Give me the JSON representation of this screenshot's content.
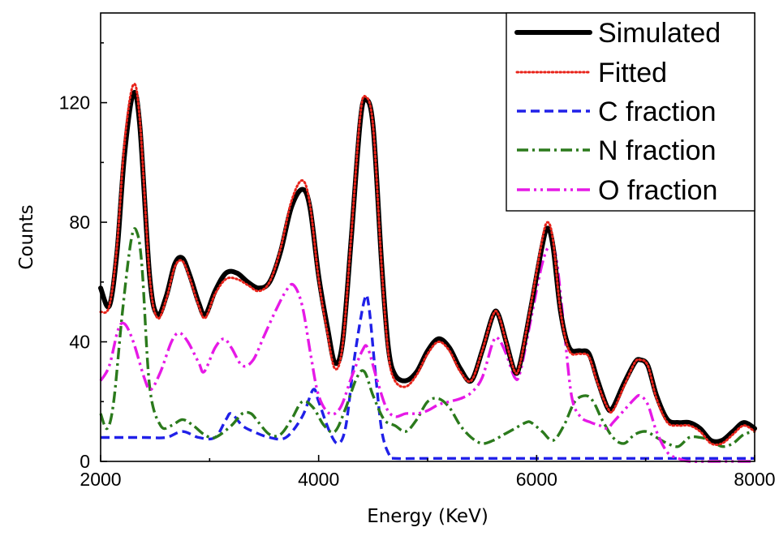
{
  "chart_data": {
    "type": "line",
    "xlabel": "Energy (KeV)",
    "ylabel": "Counts",
    "xlim": [
      2000,
      8000
    ],
    "ylim": [
      0,
      150
    ],
    "xticks": [
      2000,
      4000,
      6000,
      8000
    ],
    "yticks": [
      0,
      40,
      80,
      120
    ],
    "x_tick_labels": [
      "2000",
      "4000",
      "6000",
      "8000"
    ],
    "y_tick_labels": [
      "0",
      "40",
      "80",
      "120"
    ],
    "grid": false,
    "legend_position": "top-right",
    "series": [
      {
        "name": "Simulated",
        "color": "#000000",
        "style": "solid-thick",
        "points": [
          [
            2000,
            58
          ],
          [
            2080,
            52
          ],
          [
            2150,
            70
          ],
          [
            2220,
            103
          ],
          [
            2300,
            123
          ],
          [
            2360,
            112
          ],
          [
            2450,
            62
          ],
          [
            2520,
            49
          ],
          [
            2600,
            55
          ],
          [
            2680,
            66
          ],
          [
            2750,
            68
          ],
          [
            2820,
            62
          ],
          [
            2900,
            53
          ],
          [
            2960,
            49
          ],
          [
            3050,
            57
          ],
          [
            3150,
            63
          ],
          [
            3250,
            63
          ],
          [
            3350,
            60
          ],
          [
            3450,
            58
          ],
          [
            3550,
            60
          ],
          [
            3650,
            70
          ],
          [
            3750,
            85
          ],
          [
            3850,
            91
          ],
          [
            3920,
            85
          ],
          [
            4000,
            62
          ],
          [
            4080,
            45
          ],
          [
            4150,
            33
          ],
          [
            4220,
            40
          ],
          [
            4300,
            75
          ],
          [
            4380,
            113
          ],
          [
            4430,
            121
          ],
          [
            4500,
            112
          ],
          [
            4580,
            65
          ],
          [
            4640,
            38
          ],
          [
            4700,
            29
          ],
          [
            4800,
            27
          ],
          [
            4900,
            30
          ],
          [
            5000,
            37
          ],
          [
            5100,
            41
          ],
          [
            5200,
            38
          ],
          [
            5300,
            31
          ],
          [
            5400,
            27
          ],
          [
            5500,
            37
          ],
          [
            5600,
            49
          ],
          [
            5650,
            49
          ],
          [
            5720,
            40
          ],
          [
            5800,
            30
          ],
          [
            5850,
            33
          ],
          [
            5950,
            52
          ],
          [
            6050,
            72
          ],
          [
            6100,
            78
          ],
          [
            6150,
            72
          ],
          [
            6220,
            50
          ],
          [
            6300,
            38
          ],
          [
            6400,
            37
          ],
          [
            6480,
            36
          ],
          [
            6560,
            27
          ],
          [
            6650,
            18
          ],
          [
            6700,
            18
          ],
          [
            6800,
            26
          ],
          [
            6900,
            33
          ],
          [
            6950,
            34
          ],
          [
            7020,
            32
          ],
          [
            7100,
            22
          ],
          [
            7200,
            14
          ],
          [
            7300,
            13
          ],
          [
            7400,
            13
          ],
          [
            7500,
            11
          ],
          [
            7600,
            7
          ],
          [
            7700,
            7
          ],
          [
            7800,
            10
          ],
          [
            7900,
            13
          ],
          [
            8000,
            11
          ]
        ]
      },
      {
        "name": "Fitted",
        "color": "#e8231a",
        "style": "dotted",
        "points": [
          [
            2000,
            50
          ],
          [
            2080,
            52
          ],
          [
            2150,
            72
          ],
          [
            2220,
            107
          ],
          [
            2300,
            126
          ],
          [
            2360,
            114
          ],
          [
            2450,
            62
          ],
          [
            2520,
            48
          ],
          [
            2600,
            54
          ],
          [
            2680,
            65
          ],
          [
            2750,
            67
          ],
          [
            2820,
            61
          ],
          [
            2900,
            52
          ],
          [
            2960,
            48
          ],
          [
            3050,
            56
          ],
          [
            3150,
            61
          ],
          [
            3250,
            61
          ],
          [
            3350,
            59
          ],
          [
            3450,
            57
          ],
          [
            3550,
            60
          ],
          [
            3650,
            71
          ],
          [
            3750,
            87
          ],
          [
            3850,
            94
          ],
          [
            3920,
            86
          ],
          [
            4000,
            61
          ],
          [
            4080,
            43
          ],
          [
            4150,
            31
          ],
          [
            4220,
            39
          ],
          [
            4300,
            76
          ],
          [
            4380,
            115
          ],
          [
            4430,
            122
          ],
          [
            4500,
            112
          ],
          [
            4580,
            64
          ],
          [
            4640,
            36
          ],
          [
            4700,
            27
          ],
          [
            4800,
            25
          ],
          [
            4900,
            29
          ],
          [
            5000,
            36
          ],
          [
            5100,
            40
          ],
          [
            5200,
            37
          ],
          [
            5300,
            30
          ],
          [
            5400,
            27
          ],
          [
            5500,
            37
          ],
          [
            5600,
            49
          ],
          [
            5650,
            49
          ],
          [
            5720,
            40
          ],
          [
            5800,
            30
          ],
          [
            5850,
            33
          ],
          [
            5950,
            53
          ],
          [
            6050,
            74
          ],
          [
            6100,
            80
          ],
          [
            6150,
            74
          ],
          [
            6220,
            50
          ],
          [
            6300,
            37
          ],
          [
            6400,
            36
          ],
          [
            6480,
            35
          ],
          [
            6560,
            26
          ],
          [
            6650,
            18
          ],
          [
            6700,
            17
          ],
          [
            6800,
            25
          ],
          [
            6900,
            33
          ],
          [
            6950,
            34
          ],
          [
            7020,
            32
          ],
          [
            7100,
            21
          ],
          [
            7200,
            13
          ],
          [
            7300,
            12
          ],
          [
            7400,
            12
          ],
          [
            7500,
            10
          ],
          [
            7600,
            6
          ],
          [
            7700,
            6
          ],
          [
            7800,
            9
          ],
          [
            7900,
            12
          ],
          [
            8000,
            10
          ]
        ]
      },
      {
        "name": "C fraction",
        "color": "#2020e8",
        "style": "dashed",
        "points": [
          [
            2000,
            8
          ],
          [
            2200,
            8
          ],
          [
            2400,
            8
          ],
          [
            2600,
            8
          ],
          [
            2750,
            10
          ],
          [
            2900,
            8
          ],
          [
            3050,
            8
          ],
          [
            3150,
            14
          ],
          [
            3200,
            16
          ],
          [
            3300,
            12
          ],
          [
            3400,
            10
          ],
          [
            3550,
            8
          ],
          [
            3700,
            8
          ],
          [
            3850,
            15
          ],
          [
            3950,
            24
          ],
          [
            4000,
            20
          ],
          [
            4100,
            10
          ],
          [
            4180,
            6
          ],
          [
            4250,
            12
          ],
          [
            4330,
            35
          ],
          [
            4420,
            54
          ],
          [
            4460,
            52
          ],
          [
            4520,
            30
          ],
          [
            4580,
            10
          ],
          [
            4650,
            2
          ],
          [
            4700,
            1
          ],
          [
            5000,
            1
          ],
          [
            5500,
            1
          ],
          [
            6000,
            1
          ],
          [
            6500,
            1
          ],
          [
            7000,
            1
          ],
          [
            7500,
            1
          ],
          [
            8000,
            1
          ]
        ]
      },
      {
        "name": "N fraction",
        "color": "#2b7a1c",
        "style": "dashdot",
        "points": [
          [
            2000,
            16
          ],
          [
            2060,
            11
          ],
          [
            2120,
            20
          ],
          [
            2200,
            50
          ],
          [
            2280,
            74
          ],
          [
            2330,
            77
          ],
          [
            2380,
            65
          ],
          [
            2450,
            25
          ],
          [
            2550,
            12
          ],
          [
            2650,
            12
          ],
          [
            2750,
            14
          ],
          [
            2850,
            12
          ],
          [
            2950,
            9
          ],
          [
            3050,
            8
          ],
          [
            3200,
            12
          ],
          [
            3300,
            16
          ],
          [
            3380,
            16
          ],
          [
            3450,
            13
          ],
          [
            3550,
            9
          ],
          [
            3650,
            9
          ],
          [
            3750,
            14
          ],
          [
            3850,
            20
          ],
          [
            3950,
            18
          ],
          [
            4050,
            12
          ],
          [
            4150,
            10
          ],
          [
            4250,
            18
          ],
          [
            4350,
            28
          ],
          [
            4420,
            30
          ],
          [
            4500,
            22
          ],
          [
            4600,
            14
          ],
          [
            4700,
            12
          ],
          [
            4800,
            10
          ],
          [
            4900,
            14
          ],
          [
            5000,
            20
          ],
          [
            5100,
            21
          ],
          [
            5200,
            18
          ],
          [
            5300,
            12
          ],
          [
            5400,
            8
          ],
          [
            5500,
            6
          ],
          [
            5600,
            7
          ],
          [
            5700,
            9
          ],
          [
            5800,
            11
          ],
          [
            5900,
            13
          ],
          [
            5950,
            13
          ],
          [
            6050,
            10
          ],
          [
            6150,
            7
          ],
          [
            6250,
            12
          ],
          [
            6350,
            20
          ],
          [
            6450,
            22
          ],
          [
            6520,
            20
          ],
          [
            6600,
            14
          ],
          [
            6700,
            8
          ],
          [
            6800,
            6
          ],
          [
            6900,
            9
          ],
          [
            7000,
            10
          ],
          [
            7100,
            8
          ],
          [
            7200,
            6
          ],
          [
            7300,
            5
          ],
          [
            7400,
            8
          ],
          [
            7500,
            8
          ],
          [
            7600,
            7
          ],
          [
            7700,
            5
          ],
          [
            7800,
            6
          ],
          [
            7900,
            9
          ],
          [
            8000,
            10
          ]
        ]
      },
      {
        "name": "O fraction",
        "color": "#e619e6",
        "style": "dashdotdot",
        "points": [
          [
            2000,
            27
          ],
          [
            2080,
            32
          ],
          [
            2160,
            44
          ],
          [
            2220,
            46
          ],
          [
            2300,
            40
          ],
          [
            2400,
            28
          ],
          [
            2460,
            24
          ],
          [
            2550,
            30
          ],
          [
            2650,
            40
          ],
          [
            2720,
            43
          ],
          [
            2800,
            40
          ],
          [
            2900,
            33
          ],
          [
            2950,
            30
          ],
          [
            3050,
            38
          ],
          [
            3130,
            41
          ],
          [
            3200,
            38
          ],
          [
            3300,
            32
          ],
          [
            3400,
            34
          ],
          [
            3500,
            42
          ],
          [
            3600,
            50
          ],
          [
            3700,
            57
          ],
          [
            3770,
            59
          ],
          [
            3850,
            52
          ],
          [
            3930,
            35
          ],
          [
            4000,
            22
          ],
          [
            4100,
            16
          ],
          [
            4200,
            18
          ],
          [
            4300,
            28
          ],
          [
            4400,
            37
          ],
          [
            4450,
            38
          ],
          [
            4530,
            28
          ],
          [
            4620,
            18
          ],
          [
            4700,
            15
          ],
          [
            4800,
            16
          ],
          [
            4900,
            16
          ],
          [
            5000,
            17
          ],
          [
            5100,
            19
          ],
          [
            5200,
            20
          ],
          [
            5300,
            21
          ],
          [
            5400,
            23
          ],
          [
            5500,
            28
          ],
          [
            5600,
            40
          ],
          [
            5650,
            41
          ],
          [
            5720,
            36
          ],
          [
            5800,
            28
          ],
          [
            5850,
            30
          ],
          [
            5950,
            48
          ],
          [
            6050,
            66
          ],
          [
            6120,
            72
          ],
          [
            6180,
            68
          ],
          [
            6250,
            45
          ],
          [
            6320,
            22
          ],
          [
            6400,
            15
          ],
          [
            6500,
            13
          ],
          [
            6580,
            12
          ],
          [
            6650,
            11
          ],
          [
            6700,
            13
          ],
          [
            6800,
            17
          ],
          [
            6900,
            21
          ],
          [
            6950,
            22
          ],
          [
            7020,
            19
          ],
          [
            7100,
            10
          ],
          [
            7200,
            3
          ],
          [
            7300,
            1
          ],
          [
            7400,
            0
          ],
          [
            7600,
            0
          ],
          [
            7800,
            0
          ],
          [
            8000,
            0
          ]
        ]
      }
    ]
  }
}
